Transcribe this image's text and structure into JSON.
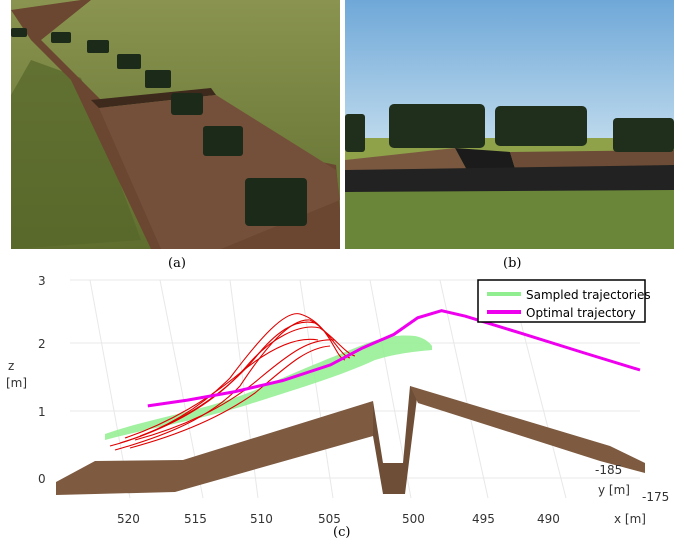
{
  "captions": {
    "a": "(a)",
    "b": "(b)",
    "c": "(c)"
  },
  "photo_a": {
    "description_icon": "vehicles-driving-on-dirt-track-icon",
    "grass_color": "#6f7f3a",
    "track_color": "#6b4630"
  },
  "photo_b": {
    "description_icon": "vehicles-crossing-ditch-icon",
    "sky_color": "#9cc3e0",
    "grass_color": "#6f8a3a"
  },
  "colors": {
    "sampled": "#90ee90",
    "optimal": "#ee00ee",
    "rejected": "#e00000",
    "terrain": "#7d5a40"
  },
  "chart_data": {
    "type": "line",
    "title": "",
    "legend": {
      "placement": "top-right",
      "entries": [
        "Sampled trajectories",
        "Optimal trajectory"
      ]
    },
    "axes": {
      "x": {
        "label": "x [m]",
        "ticks": [
          "520",
          "515",
          "510",
          "505",
          "500",
          "495",
          "490"
        ]
      },
      "y": {
        "label": "y [m]",
        "ticks": [
          "-185",
          "-175"
        ]
      },
      "z": {
        "label": "z",
        "unit": "[m]",
        "ticks": [
          "0",
          "1",
          "2",
          "3"
        ]
      }
    },
    "grid": true,
    "series": [
      {
        "name": "Optimal trajectory",
        "x": [
          518.5,
          516,
          513,
          510,
          507,
          505,
          503,
          501.5,
          500,
          498.5,
          495,
          491,
          487.5
        ],
        "z": [
          0.75,
          0.82,
          0.93,
          1.08,
          1.3,
          1.55,
          1.75,
          2.0,
          2.1,
          2.0,
          1.7,
          1.35,
          1.05
        ]
      }
    ]
  }
}
